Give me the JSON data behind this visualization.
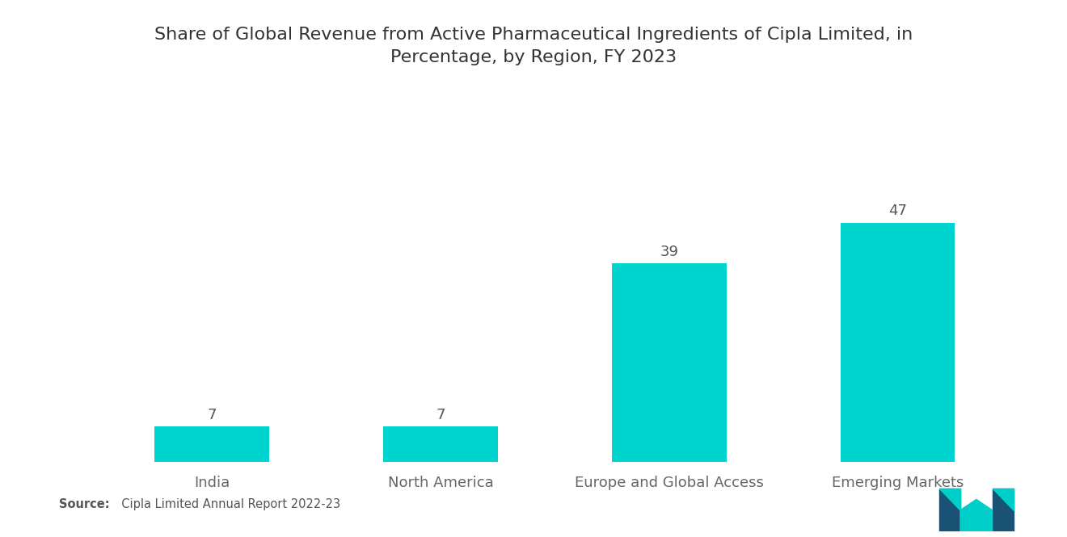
{
  "title": "Share of Global Revenue from Active Pharmaceutical Ingredients of Cipla Limited, in\nPercentage, by Region, FY 2023",
  "categories": [
    "India",
    "North America",
    "Europe and Global Access",
    "Emerging Markets"
  ],
  "values": [
    7,
    7,
    39,
    47
  ],
  "bar_color": "#00D4CF",
  "background_color": "#ffffff",
  "title_fontsize": 16,
  "label_fontsize": 13,
  "value_fontsize": 13,
  "source_bold": "Source:",
  "source_rest": "  Cipla Limited Annual Report 2022-23",
  "ylim": [
    0,
    58
  ]
}
